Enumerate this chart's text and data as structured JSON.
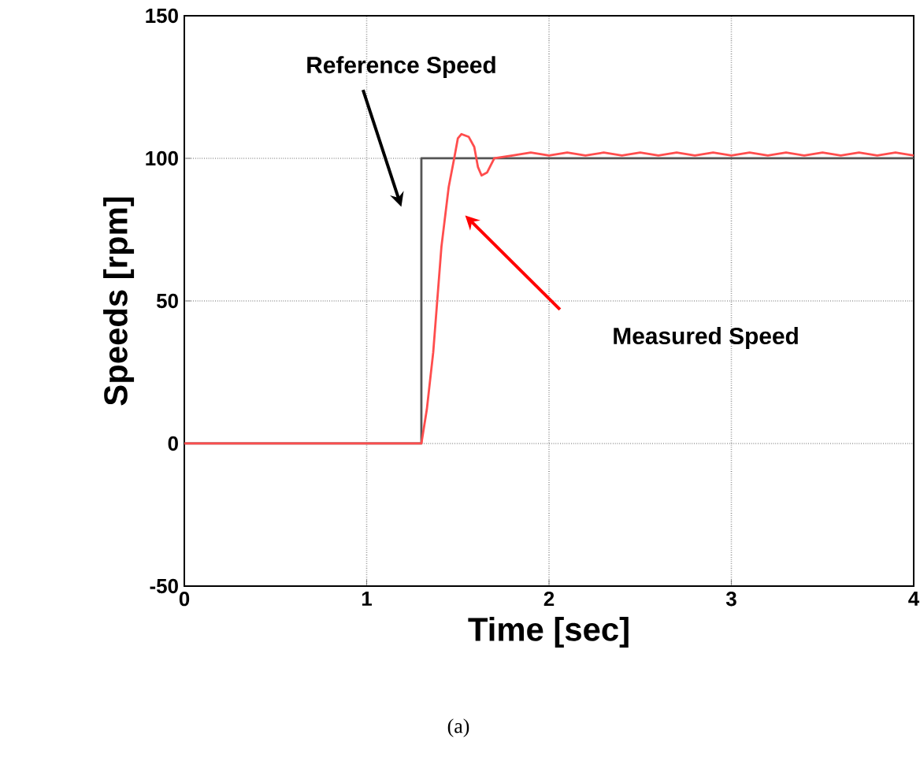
{
  "chart_data": {
    "type": "line",
    "xlabel": "Time [sec]",
    "ylabel": "Speeds [rpm]",
    "xlim": [
      0,
      4
    ],
    "ylim": [
      -50,
      150
    ],
    "xticks": [
      0,
      1,
      2,
      3,
      4
    ],
    "yticks": [
      -50,
      0,
      50,
      100,
      150
    ],
    "grid": true,
    "series": [
      {
        "color": "#555555",
        "x": [
          0,
          1.3,
          1.3,
          4
        ],
        "values": [
          0,
          0,
          100,
          100
        ]
      },
      {
        "color": "#ff4d4d",
        "x": [
          0,
          1.3,
          1.33,
          1.365,
          1.41,
          1.45,
          1.48,
          1.5,
          1.52,
          1.56,
          1.59,
          1.61,
          1.63,
          1.66,
          1.7,
          1.8,
          1.9,
          2.0,
          2.1,
          2.2,
          2.3,
          2.4,
          2.5,
          2.6,
          2.7,
          2.8,
          2.9,
          3.0,
          3.1,
          3.2,
          3.3,
          3.4,
          3.5,
          3.6,
          3.7,
          3.8,
          3.9,
          4.0
        ],
        "values": [
          0,
          0,
          12,
          32,
          69,
          90,
          100,
          107,
          108.5,
          107.5,
          104,
          97,
          94,
          95,
          100,
          101,
          102,
          101,
          102,
          101,
          102,
          101,
          102,
          101,
          102,
          101,
          102,
          101,
          102,
          101,
          102,
          101,
          102,
          101,
          102,
          101,
          102,
          101
        ]
      }
    ],
    "annotations": [
      "Reference Speed",
      "Measured Speed",
      "(a)"
    ]
  }
}
